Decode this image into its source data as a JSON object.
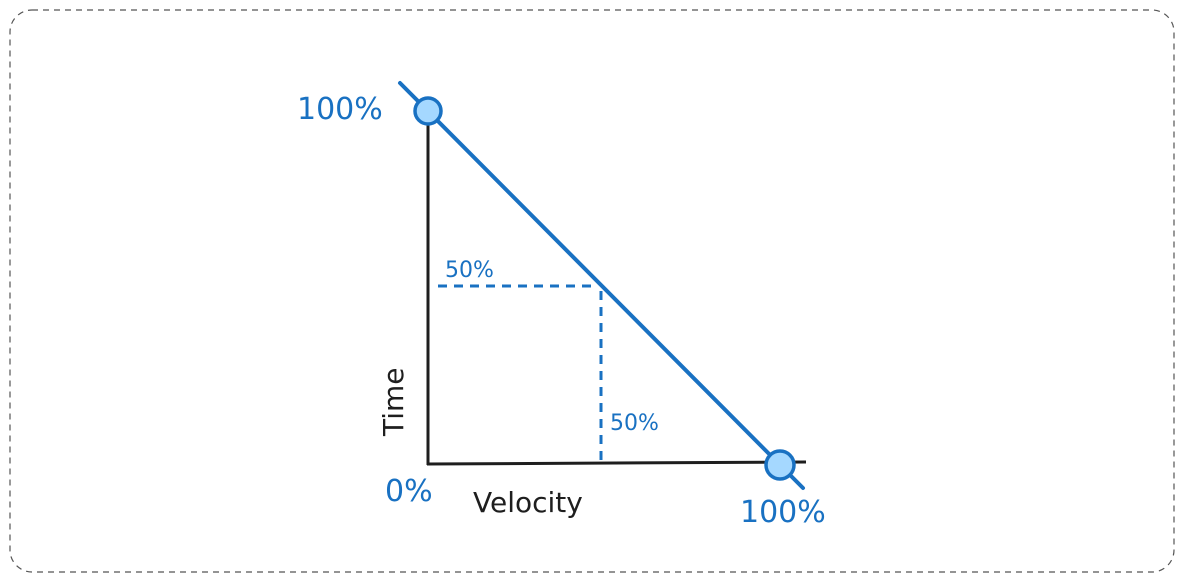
{
  "colors": {
    "accent": "#1971c2",
    "node_fill": "#a5d8ff",
    "axis": "#1e1e1e",
    "border": "#555555"
  },
  "labels": {
    "y_top": "100%",
    "origin": "0%",
    "x_end": "100%",
    "mid_y": "50%",
    "mid_x": "50%",
    "x_axis": "Velocity",
    "y_axis": "Time"
  }
}
